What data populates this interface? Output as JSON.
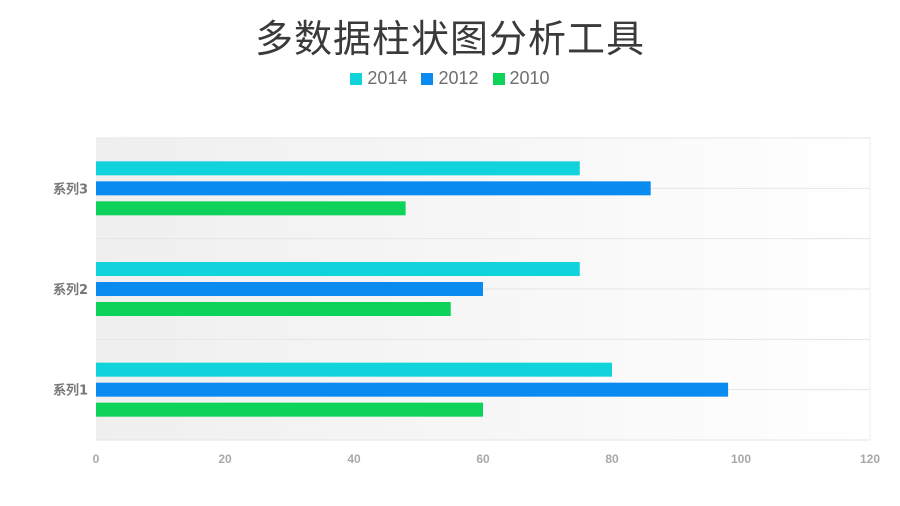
{
  "chart_data": {
    "type": "bar",
    "orientation": "horizontal",
    "title": "多数据柱状图分析工具",
    "categories": [
      "系列1",
      "系列2",
      "系列3"
    ],
    "series": [
      {
        "name": "2014",
        "color": "#10D3DC",
        "values": [
          80,
          75,
          75
        ]
      },
      {
        "name": "2012",
        "color": "#0A8BF0",
        "values": [
          98,
          60,
          86
        ]
      },
      {
        "name": "2010",
        "color": "#0DD35A",
        "values": [
          60,
          55,
          48
        ]
      }
    ],
    "xlim": [
      0,
      120
    ],
    "xticks": [
      "0",
      "20",
      "40",
      "60",
      "80",
      "100",
      "120"
    ],
    "grid": true,
    "legend_position": "top"
  }
}
